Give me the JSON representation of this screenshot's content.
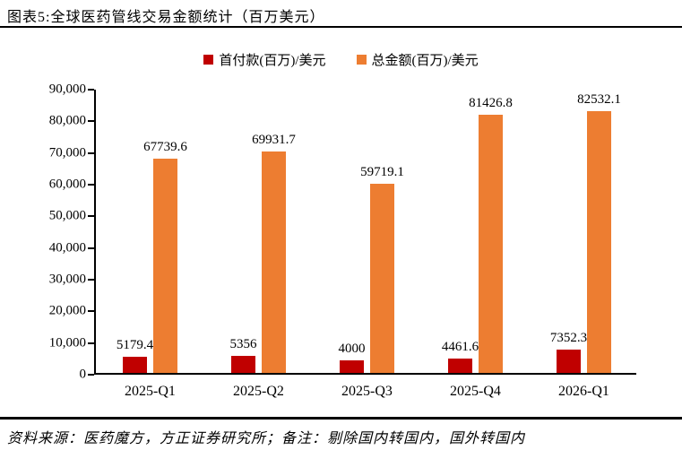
{
  "header": {
    "title": "图表5:全球医药管线交易金额统计（百万美元）"
  },
  "footer": {
    "source": "资料来源：医药魔方，方正证券研究所；备注：剔除国内转国内，国外转国内"
  },
  "colors": {
    "upfront": "#c00000",
    "total": "#ed7d31",
    "axis": "#000000",
    "background": "#ffffff"
  },
  "chart_data": {
    "type": "bar",
    "title": "图表5:全球医药管线交易金额统计（百万美元）",
    "categories": [
      "2025-Q1",
      "2025-Q2",
      "2025-Q3",
      "2025-Q4",
      "2026-Q1"
    ],
    "series": [
      {
        "name": "首付款(百万)/美元",
        "color": "#c00000",
        "values": [
          5179.4,
          5356,
          4000,
          4461.6,
          7352.3
        ]
      },
      {
        "name": "总金额(百万)/美元",
        "color": "#ed7d31",
        "values": [
          67739.6,
          69931.7,
          59719.1,
          81426.8,
          82532.1
        ]
      }
    ],
    "xlabel": "",
    "ylabel": "",
    "ylim": [
      0,
      90000
    ],
    "ytick_step": 10000,
    "grid": false,
    "legend_position": "top",
    "value_labels": true
  }
}
